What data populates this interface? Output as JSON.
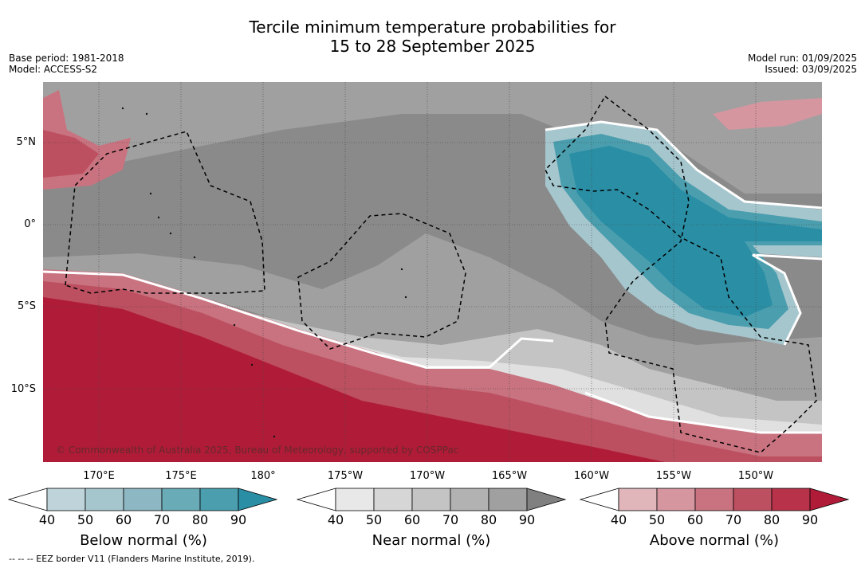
{
  "title": {
    "line1": "Tercile minimum temperature probabilities for",
    "line2": "15 to 28 September 2025"
  },
  "meta": {
    "base_period": "Base period: 1981-2018",
    "model": "Model: ACCESS-S2",
    "model_run": "Model run: 01/09/2025",
    "issued": "Issued: 03/09/2025"
  },
  "map": {
    "lat_labels": [
      "5°N",
      "0°",
      "5°S",
      "10°S"
    ],
    "lon_labels": [
      "170°E",
      "175°E",
      "180°",
      "175°W",
      "170°W",
      "165°W",
      "160°W",
      "155°W",
      "150°W"
    ],
    "copyright": "© Commonwealth of Australia 2025, Bureau of Meteorology, supported by COSPPac",
    "colors": {
      "near_normal_base": "#8a8a8a",
      "below_90": "#2a8ea5",
      "above_90": "#b01c38",
      "land": "#111111"
    }
  },
  "colorbars": [
    {
      "title": "Below normal (%)",
      "ticks": [
        "40",
        "50",
        "60",
        "70",
        "80",
        "90"
      ],
      "colors": [
        "#ffffff",
        "#bed4da",
        "#a6c6ce",
        "#8db7c2",
        "#6aabb8",
        "#4a9eae",
        "#2a8ea5"
      ]
    },
    {
      "title": "Near normal (%)",
      "ticks": [
        "40",
        "50",
        "60",
        "70",
        "80",
        "90"
      ],
      "colors": [
        "#ffffff",
        "#e8e8e8",
        "#d6d6d6",
        "#c4c4c4",
        "#b2b2b2",
        "#a0a0a0",
        "#808080"
      ]
    },
    {
      "title": "Above normal (%)",
      "ticks": [
        "40",
        "50",
        "60",
        "70",
        "80",
        "90"
      ],
      "colors": [
        "#ffffff",
        "#e0b6bb",
        "#d6969f",
        "#c97380",
        "#bd5060",
        "#b8334a",
        "#b01c38"
      ]
    }
  ],
  "footnote": "--  --  -- EEZ border V11 (Flanders Marine Institute, 2019)."
}
